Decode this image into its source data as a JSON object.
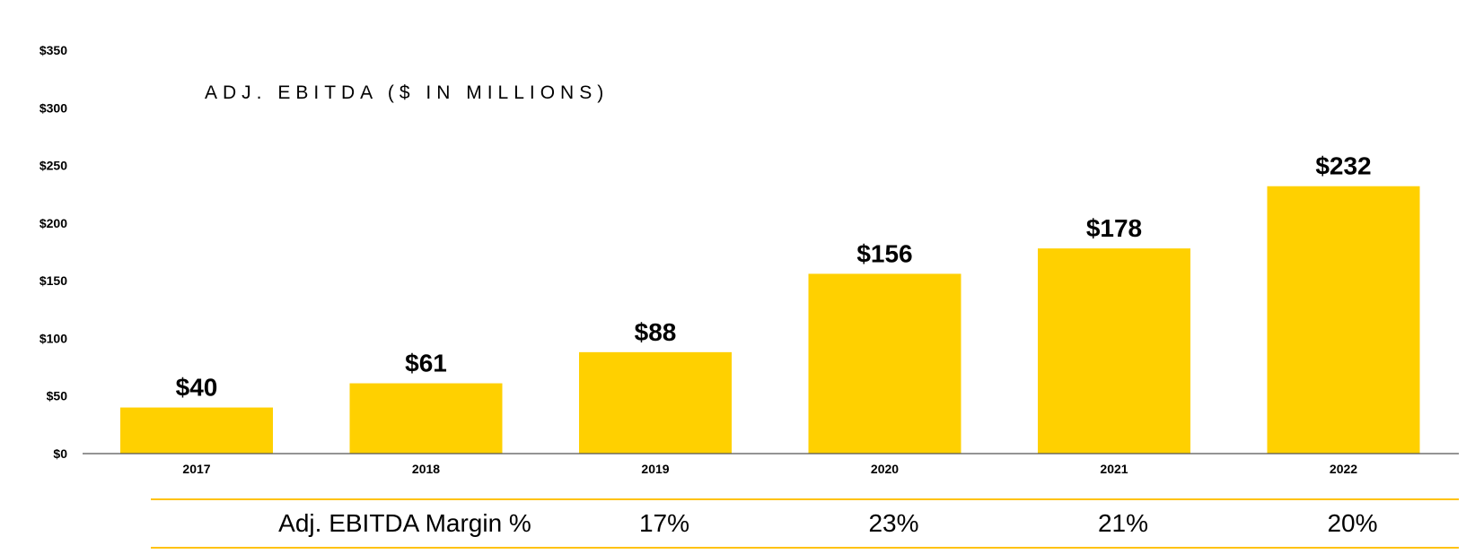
{
  "chart_data": {
    "type": "bar",
    "title": "ADJ. EBITDA ($ IN MILLIONS)",
    "categories": [
      "2017",
      "2018",
      "2019",
      "2020",
      "2021",
      "2022"
    ],
    "values": [
      40,
      61,
      88,
      156,
      178,
      232
    ],
    "data_labels": [
      "$40",
      "$61",
      "$88",
      "$156",
      "$178",
      "$232"
    ],
    "ylim": [
      0,
      350
    ],
    "yticks": [
      0,
      50,
      100,
      150,
      200,
      250,
      300,
      350
    ],
    "ytick_labels": [
      "$0",
      "$50",
      "$100",
      "$150",
      "$200",
      "$250",
      "$300",
      "$350"
    ],
    "grid": false,
    "bar_color": "#FFD000"
  },
  "margin_table": {
    "label": "Adj. EBITDA Margin %",
    "columns": [
      "2019",
      "2020",
      "2021",
      "2022"
    ],
    "values": [
      "17%",
      "23%",
      "21%",
      "20%"
    ],
    "line_color": "#FFC20E"
  }
}
